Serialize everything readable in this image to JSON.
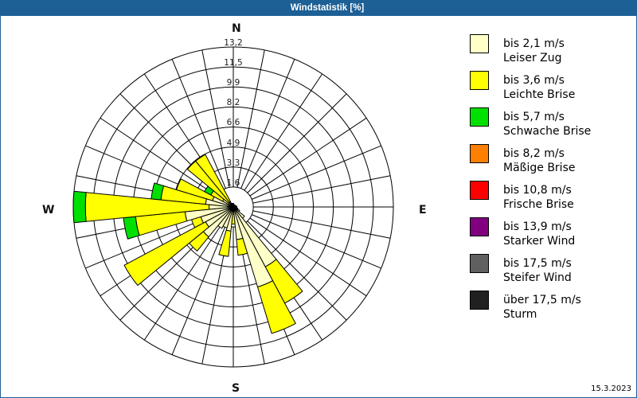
{
  "window": {
    "title": "Windstatistik [%]"
  },
  "compass": {
    "north": "N",
    "east": "E",
    "south": "S",
    "west": "W"
  },
  "footer": {
    "date": "15.3.2023"
  },
  "legend": {
    "items": [
      {
        "line1": "bis 2,1 m/s",
        "line2": "Leiser Zug",
        "color": "#FFFFC8"
      },
      {
        "line1": "bis 3,6 m/s",
        "line2": "Leichte Brise",
        "color": "#FFFF00"
      },
      {
        "line1": "bis 5,7 m/s",
        "line2": "Schwache Brise",
        "color": "#00E000"
      },
      {
        "line1": "bis 8,2 m/s",
        "line2": "Mäßige Brise",
        "color": "#FF8000"
      },
      {
        "line1": "bis 10,8 m/s",
        "line2": "Frische Brise",
        "color": "#FF0000"
      },
      {
        "line1": "bis 13,9 m/s",
        "line2": "Starker Wind",
        "color": "#800080"
      },
      {
        "line1": "bis 17,5 m/s",
        "line2": "Steifer Wind",
        "color": "#606060"
      },
      {
        "line1": "über 17,5 m/s",
        "line2": "Sturm",
        "color": "#202020"
      }
    ]
  },
  "chart_data": {
    "type": "bar",
    "polar": true,
    "stacked": true,
    "title": "Windstatistik [%]",
    "unit": "%",
    "direction_labels": {
      "0": "N",
      "90": "E",
      "180": "S",
      "270": "W"
    },
    "directions_deg": [
      0,
      11.25,
      22.5,
      33.75,
      45,
      56.25,
      67.5,
      78.75,
      90,
      101.25,
      112.5,
      123.75,
      135,
      146.25,
      157.5,
      168.75,
      180,
      191.25,
      202.5,
      213.75,
      225,
      236.25,
      247.5,
      258.75,
      270,
      281.25,
      292.5,
      303.75,
      315,
      326.25,
      337.5,
      348.75
    ],
    "r_ticks": [
      1.6,
      3.3,
      4.9,
      6.6,
      8.2,
      9.9,
      11.5,
      13.2
    ],
    "r_tick_labels": [
      "1,6",
      "3,3",
      "4,9",
      "6,6",
      "8,2",
      "9,9",
      "11,5",
      "13,2"
    ],
    "rlim": [
      0,
      13.2
    ],
    "grid": true,
    "legend_position": "right",
    "series": [
      {
        "name": "bis 2,1 m/s Leiser Zug",
        "color": "#FFFFC8",
        "values": [
          0.3,
          0.2,
          0.2,
          0.2,
          0.2,
          0.2,
          0.2,
          0.3,
          0.3,
          0.3,
          0.4,
          0.6,
          1.2,
          5.6,
          6.9,
          2.7,
          0.6,
          2.0,
          1.8,
          2.0,
          3.2,
          2.6,
          2.8,
          4.0,
          2.0,
          2.3,
          1.8,
          1.0,
          0.5,
          0.5,
          0.3,
          0.3
        ]
      },
      {
        "name": "bis 3,6 m/s Leichte Brise",
        "color": "#FFFF00",
        "values": [
          0,
          0,
          0,
          0,
          0,
          0,
          0,
          0,
          0,
          0,
          0,
          0,
          0,
          3.4,
          4.0,
          1.3,
          0.8,
          2.1,
          0,
          0,
          1.5,
          7.6,
          0.8,
          4.1,
          10.2,
          3.7,
          3.1,
          1.1,
          4.4,
          4.4,
          0,
          0
        ]
      },
      {
        "name": "bis 5,7 m/s Schwache Brise",
        "color": "#00E000",
        "values": [
          0,
          0,
          0,
          0,
          0,
          0,
          0,
          0,
          0,
          0,
          0,
          0,
          0,
          0,
          0,
          0,
          0,
          0,
          0,
          0,
          0,
          0,
          0,
          1.0,
          1.0,
          0.8,
          0,
          0.6,
          0,
          0,
          0,
          0
        ]
      },
      {
        "name": "bis 8,2 m/s Mäßige Brise",
        "color": "#FF8000",
        "values": [
          0,
          0,
          0,
          0,
          0,
          0,
          0,
          0,
          0,
          0,
          0,
          0,
          0,
          0,
          0,
          0,
          0,
          0,
          0,
          0,
          0,
          0,
          0,
          0,
          0,
          0,
          0,
          0,
          0,
          0,
          0,
          0
        ]
      },
      {
        "name": "bis 10,8 m/s Frische Brise",
        "color": "#FF0000",
        "values": [
          0,
          0,
          0,
          0,
          0,
          0,
          0,
          0,
          0,
          0,
          0,
          0,
          0,
          0,
          0,
          0,
          0,
          0,
          0,
          0,
          0,
          0,
          0,
          0,
          0,
          0,
          0,
          0,
          0,
          0,
          0,
          0
        ]
      },
      {
        "name": "bis 13,9 m/s Starker Wind",
        "color": "#800080",
        "values": [
          0,
          0,
          0,
          0,
          0,
          0,
          0,
          0,
          0,
          0,
          0,
          0,
          0,
          0,
          0,
          0,
          0,
          0,
          0,
          0,
          0,
          0,
          0,
          0,
          0,
          0,
          0,
          0,
          0,
          0,
          0,
          0
        ]
      },
      {
        "name": "bis 17,5 m/s Steifer Wind",
        "color": "#606060",
        "values": [
          0,
          0,
          0,
          0,
          0,
          0,
          0,
          0,
          0,
          0,
          0,
          0,
          0,
          0,
          0,
          0,
          0,
          0,
          0,
          0,
          0,
          0,
          0,
          0,
          0,
          0,
          0,
          0,
          0,
          0,
          0,
          0
        ]
      },
      {
        "name": "über 17,5 m/s Sturm",
        "color": "#202020",
        "values": [
          0,
          0,
          0,
          0,
          0,
          0,
          0,
          0,
          0,
          0,
          0,
          0,
          0,
          0,
          0,
          0,
          0,
          0,
          0,
          0,
          0,
          0,
          0,
          0,
          0,
          0,
          0,
          0,
          0,
          0,
          0,
          0
        ]
      }
    ]
  }
}
